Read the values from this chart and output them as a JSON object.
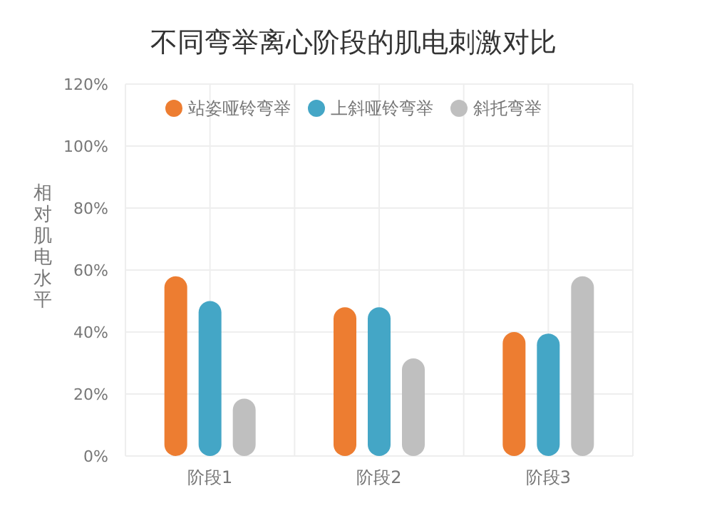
{
  "chart_data": {
    "type": "bar",
    "title": "不同弯举离心阶段的肌电刺激对比",
    "ylabel": "相对肌电水平",
    "categories": [
      "阶段1",
      "阶段2",
      "阶段3"
    ],
    "series": [
      {
        "name": "站姿哑铃弯举",
        "color": "#ed7d31",
        "values": [
          58,
          48,
          40
        ]
      },
      {
        "name": "上斜哑铃弯举",
        "color": "#44a6c6",
        "values": [
          50,
          48,
          39.5
        ]
      },
      {
        "name": "斜托弯举",
        "color": "#bfbfbf",
        "values": [
          18.5,
          31.5,
          58
        ]
      }
    ],
    "ylim": [
      0,
      120
    ],
    "yticks": [
      {
        "value": 0,
        "label": "0%"
      },
      {
        "value": 20,
        "label": "20%"
      },
      {
        "value": 40,
        "label": "40%"
      },
      {
        "value": 60,
        "label": "60%"
      },
      {
        "value": 80,
        "label": "80%"
      },
      {
        "value": 100,
        "label": "100%"
      },
      {
        "value": 120,
        "label": "120%"
      }
    ],
    "grid": true,
    "legend": "top"
  }
}
